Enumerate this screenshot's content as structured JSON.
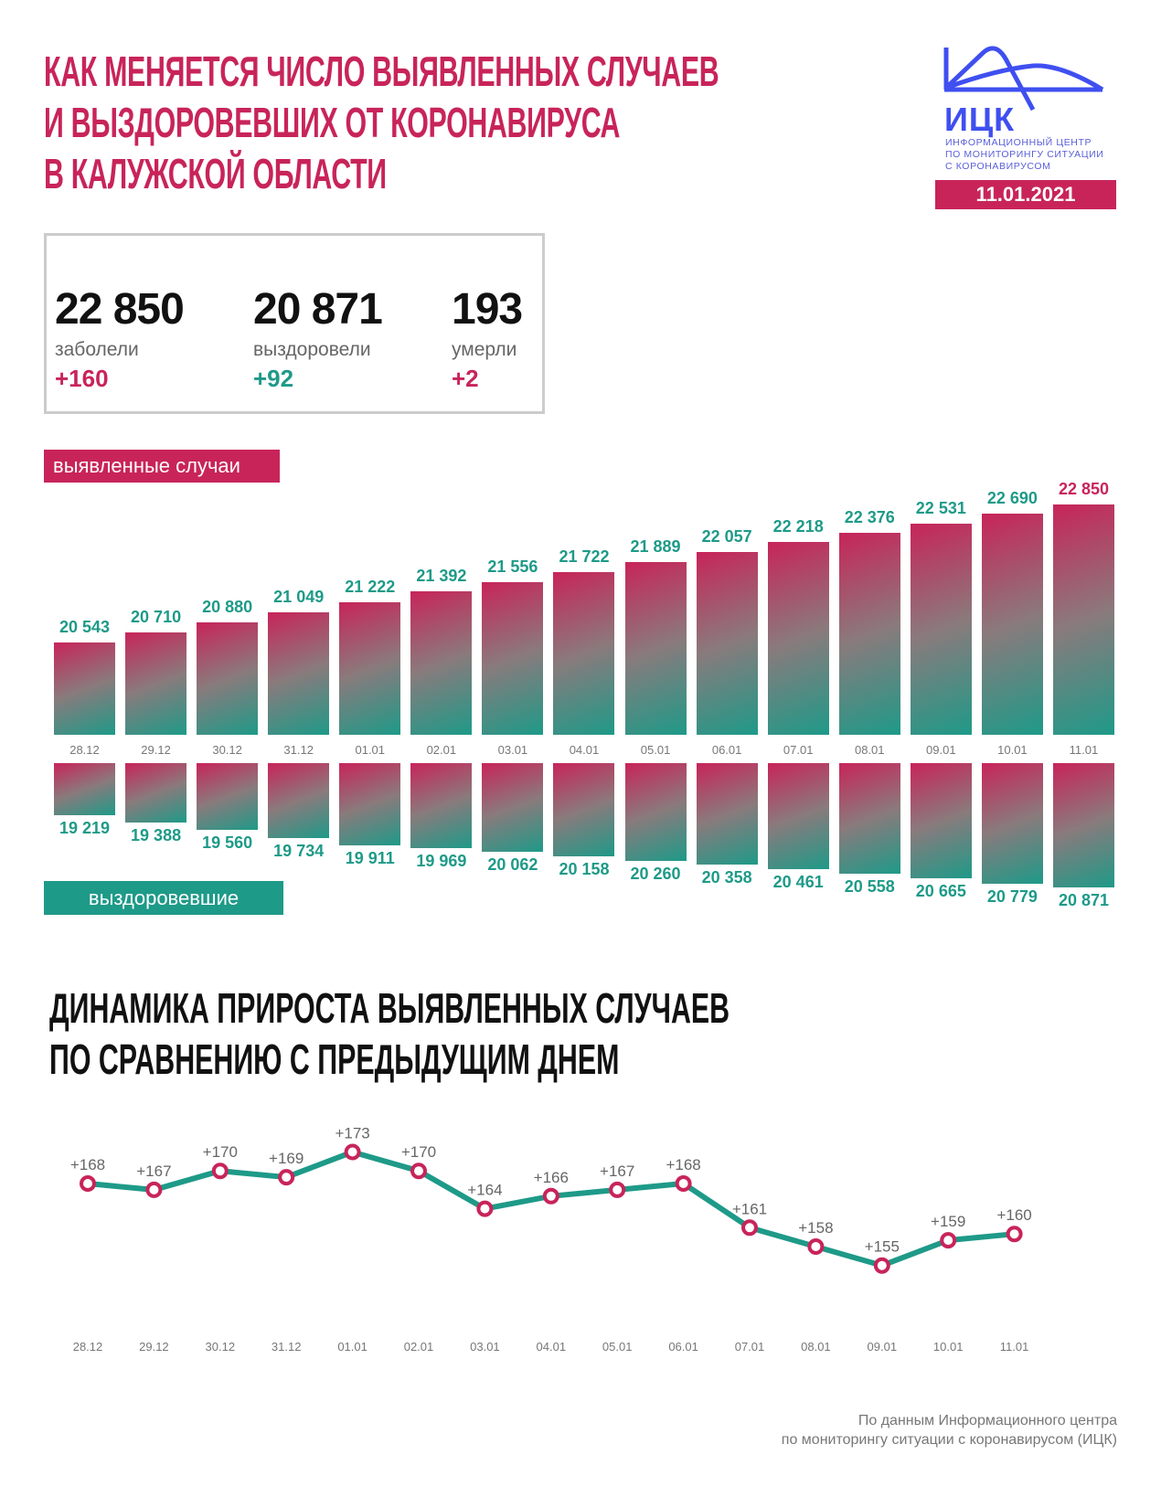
{
  "header": {
    "title_lines": [
      "КАК МЕНЯЕТСЯ ЧИСЛО ВЫЯВЛЕННЫХ СЛУЧАЕВ",
      "И ВЫЗДОРОВЕВШИХ ОТ КОРОНАВИРУСА",
      "В КАЛУЖСКОЙ ОБЛАСТИ"
    ],
    "logo_text": "ИЦК",
    "logo_subtitle_lines": [
      "ИНФОРМАЦИОННЫЙ ЦЕНТР",
      "ПО МОНИТОРИНГУ СИТУАЦИИ",
      "С КОРОНАВИРУСОМ"
    ],
    "date": "11.01.2021"
  },
  "summary": {
    "stats": [
      {
        "value": "22 850",
        "label": "заболели",
        "delta": "+160",
        "delta_color": "#c8245a"
      },
      {
        "value": "20 871",
        "label": "выздоровели",
        "delta": "+92",
        "delta_color": "#1e9a88"
      },
      {
        "value": "193",
        "label": "умерли",
        "delta": "+2",
        "delta_color": "#c8245a"
      }
    ]
  },
  "legend": {
    "cases": "выявленные случаи",
    "recovered": "выздоровевшие"
  },
  "section2": {
    "title_lines": [
      "ДИНАМИКА ПРИРОСТА ВЫЯВЛЕННЫХ СЛУЧАЕВ",
      "ПО СРАВНЕНИЮ С ПРЕДЫДУЩИМ ДНЕМ"
    ]
  },
  "footer": {
    "lines": [
      "По данным Информационного центра",
      "по мониторингу ситуации с коронавирусом (ИЦК)"
    ]
  },
  "colors": {
    "accent": "#c8245a",
    "teal": "#1e9a88",
    "logo_blue": "#3f4ff0"
  },
  "chart_data": [
    {
      "type": "bar",
      "title": "выявленные случаи / выздоровевшие",
      "categories": [
        "28.12",
        "29.12",
        "30.12",
        "31.12",
        "01.01",
        "02.01",
        "03.01",
        "04.01",
        "05.01",
        "06.01",
        "07.01",
        "08.01",
        "09.01",
        "10.01",
        "11.01"
      ],
      "series": [
        {
          "name": "выявленные случаи",
          "values": [
            20543,
            20710,
            20880,
            21049,
            21222,
            21392,
            21556,
            21722,
            21889,
            22057,
            22218,
            22376,
            22531,
            22690,
            22850
          ],
          "labels": [
            "20 543",
            "20 710",
            "20 880",
            "21 049",
            "21 222",
            "21 392",
            "21 556",
            "21 722",
            "21 889",
            "22 057",
            "22 218",
            "22 376",
            "22 531",
            "22 690",
            "22 850"
          ]
        },
        {
          "name": "выздоровевшие",
          "values": [
            19219,
            19388,
            19560,
            19734,
            19911,
            19969,
            20062,
            20158,
            20260,
            20358,
            20461,
            20558,
            20665,
            20779,
            20871
          ],
          "labels": [
            "19 219",
            "19 388",
            "19 560",
            "19 734",
            "19 911",
            "19 969",
            "20 062",
            "20 158",
            "20 260",
            "20 358",
            "20 461",
            "20 558",
            "20 665",
            "20 779",
            "20 871"
          ]
        }
      ],
      "xlabel": "",
      "ylabel": "",
      "grid": false,
      "legend_position": "left"
    },
    {
      "type": "line",
      "title": "ДИНАМИКА ПРИРОСТА ВЫЯВЛЕННЫХ СЛУЧАЕВ ПО СРАВНЕНИЮ С ПРЕДЫДУЩИМ ДНЕМ",
      "categories": [
        "28.12",
        "29.12",
        "30.12",
        "31.12",
        "01.01",
        "02.01",
        "03.01",
        "04.01",
        "05.01",
        "06.01",
        "07.01",
        "08.01",
        "09.01",
        "10.01",
        "11.01"
      ],
      "values": [
        168,
        167,
        170,
        169,
        173,
        170,
        164,
        166,
        167,
        168,
        161,
        158,
        155,
        159,
        160
      ],
      "labels": [
        "+168",
        "+167",
        "+170",
        "+169",
        "+173",
        "+170",
        "+164",
        "+166",
        "+167",
        "+168",
        "+161",
        "+158",
        "+155",
        "+159",
        "+160"
      ],
      "xlabel": "",
      "ylabel": "",
      "grid": false
    }
  ]
}
